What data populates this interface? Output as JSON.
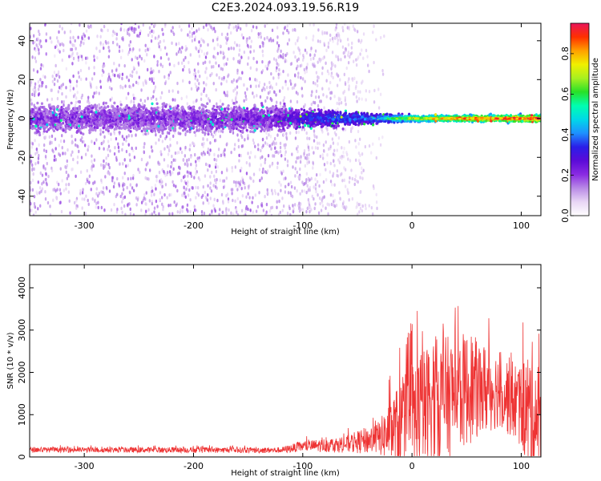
{
  "figure_title": "C2E3.2024.093.19.56.R19",
  "chart_data": [
    {
      "type": "heatmap",
      "title": "C2E3.2024.093.19.56.R19",
      "xlabel": "Height of straight line (km)",
      "ylabel": "Frequency (Hz)",
      "xlim": [
        -350,
        118
      ],
      "ylim": [
        -50,
        49
      ],
      "xticks": [
        -300,
        -200,
        -100,
        0,
        100
      ],
      "yticks": [
        -40,
        -20,
        0,
        20,
        40
      ],
      "colorbar": {
        "label": "Normalized spectral amplitude",
        "range": [
          0,
          0.95
        ],
        "ticks": [
          0.0,
          0.2,
          0.4,
          0.6,
          0.8
        ],
        "colormap": [
          "#ffffff",
          "#e8d6f5",
          "#b98ae6",
          "#8a2be2",
          "#5b0bd8",
          "#2a1ee8",
          "#1e90ff",
          "#00d8e8",
          "#00ffb0",
          "#28e028",
          "#a8f020",
          "#f0f000",
          "#ffa000",
          "#ff3000",
          "#e8145a"
        ]
      },
      "band_profile": [
        {
          "x": -350,
          "halfwidth": 9,
          "intensity": 0.22
        },
        {
          "x": -200,
          "halfwidth": 9,
          "intensity": 0.22
        },
        {
          "x": -120,
          "halfwidth": 8,
          "intensity": 0.25
        },
        {
          "x": -100,
          "halfwidth": 6,
          "intensity": 0.35
        },
        {
          "x": -60,
          "halfwidth": 5,
          "intensity": 0.4
        },
        {
          "x": -30,
          "halfwidth": 3,
          "intensity": 0.45
        },
        {
          "x": 0,
          "halfwidth": 2,
          "intensity": 0.65
        },
        {
          "x": 50,
          "halfwidth": 2,
          "intensity": 0.8
        },
        {
          "x": 118,
          "halfwidth": 2.5,
          "intensity": 0.85
        }
      ],
      "scatter_region": {
        "x_end": -45,
        "y_extent": [
          -50,
          49
        ],
        "intensity": 0.06
      }
    },
    {
      "type": "line",
      "xlabel": "Height of straight line (km)",
      "ylabel": "SNR (10 * v/v)",
      "xlim": [
        -350,
        118
      ],
      "ylim": [
        0,
        4550
      ],
      "xticks": [
        -300,
        -200,
        -100,
        0,
        100
      ],
      "yticks": [
        0,
        1000,
        2000,
        3000,
        4000
      ],
      "color": "#ee3333",
      "envelope": [
        {
          "x": -350,
          "base": 170,
          "amp": 120
        },
        {
          "x": -120,
          "base": 160,
          "amp": 140
        },
        {
          "x": -100,
          "base": 250,
          "amp": 250
        },
        {
          "x": -60,
          "base": 300,
          "amp": 400
        },
        {
          "x": -30,
          "base": 450,
          "amp": 800
        },
        {
          "x": -20,
          "base": 600,
          "amp": 1500
        },
        {
          "x": 0,
          "base": 900,
          "amp": 2900
        },
        {
          "x": 20,
          "base": 1300,
          "amp": 3000
        },
        {
          "x": 50,
          "base": 1600,
          "amp": 2700
        },
        {
          "x": 80,
          "base": 1600,
          "amp": 1800
        },
        {
          "x": 100,
          "base": 1200,
          "amp": 2000
        },
        {
          "x": 110,
          "base": 1000,
          "amp": 3500
        },
        {
          "x": 118,
          "base": 900,
          "amp": 2400
        }
      ]
    }
  ]
}
